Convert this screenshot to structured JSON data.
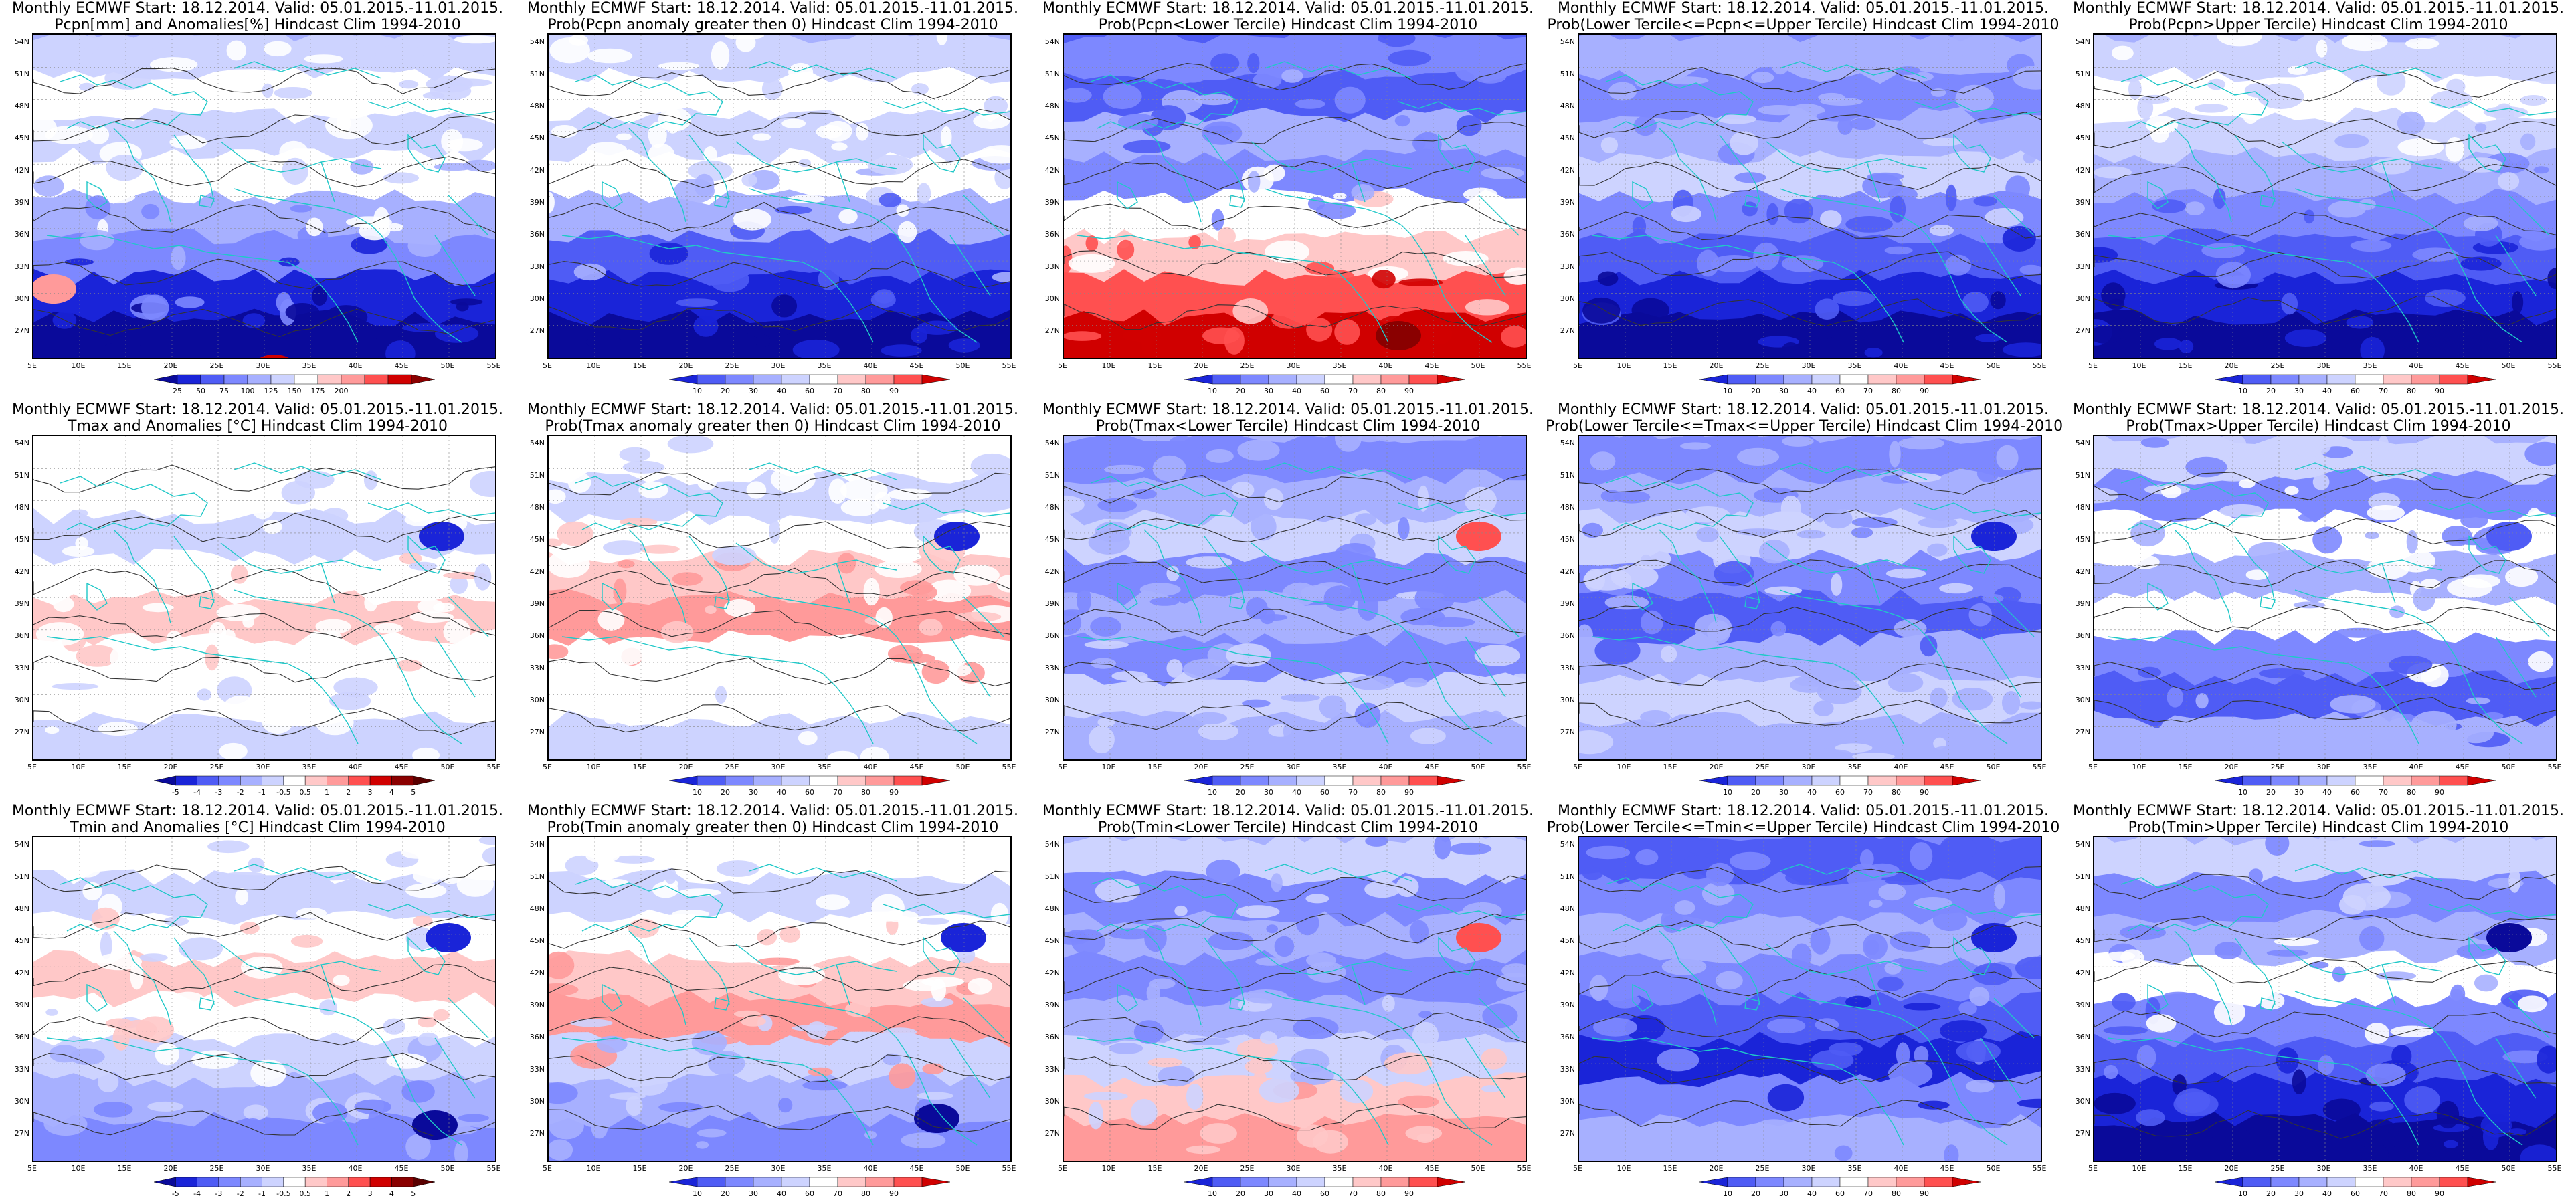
{
  "header_line": "Monthly ECMWF Start: 18.12.2014. Valid: 05.01.2015.-11.01.2015.",
  "lat_labels": [
    "54N",
    "51N",
    "48N",
    "45N",
    "42N",
    "39N",
    "36N",
    "33N",
    "30N",
    "27N"
  ],
  "lon_labels": [
    "5E",
    "10E",
    "15E",
    "20E",
    "25E",
    "30E",
    "35E",
    "40E",
    "45E",
    "50E",
    "55E"
  ],
  "colors": {
    "white": "#ffffff",
    "pale_blue": "#cdd3ff",
    "light_blue": "#a7b0ff",
    "mid_blue": "#7d88ff",
    "blue": "#4f5cf5",
    "dark_blue": "#1a24d8",
    "navy": "#0a0a9a",
    "pale_red": "#ffc8c8",
    "light_red": "#ff9a9a",
    "red": "#ff5050",
    "dark_red": "#d00000",
    "deep_red": "#8a0000",
    "coast": "#20c8c8",
    "contour": "#333333"
  },
  "scales": {
    "pcpn": [
      "25",
      "50",
      "75",
      "100",
      "125",
      "150",
      "175",
      "200"
    ],
    "anom": [
      "-5",
      "-4",
      "-3",
      "-2",
      "-1",
      "-0.5",
      "0.5",
      "1",
      "2",
      "3",
      "4",
      "5"
    ],
    "prob": [
      "10",
      "20",
      "30",
      "40",
      "60",
      "70",
      "80",
      "90"
    ]
  },
  "panels": [
    {
      "id": "r1c1",
      "line2": "Pcpn[mm] and Anomalies[%] Hindcast Clim 1994-2010",
      "scale": "pcpn",
      "pattern": "pcpn-anom"
    },
    {
      "id": "r1c2",
      "line2": "Prob(Pcpn anomaly greater then 0) Hindcast Clim 1994-2010",
      "scale": "prob",
      "pattern": "pcpn-prob"
    },
    {
      "id": "r1c3",
      "line2": "Prob(Pcpn<Lower Tercile) Hindcast Clim 1994-2010",
      "scale": "prob",
      "pattern": "pcpn-lower"
    },
    {
      "id": "r1c4",
      "line2": "Prob(Lower Tercile<=Pcpn<=Upper Tercile) Hindcast Clim 1994-2010",
      "scale": "prob",
      "pattern": "pcpn-mid"
    },
    {
      "id": "r1c5",
      "line2": "Prob(Pcpn>Upper Tercile) Hindcast Clim 1994-2010",
      "scale": "prob",
      "pattern": "pcpn-upper"
    },
    {
      "id": "r2c1",
      "line2": "Tmax and Anomalies [°C] Hindcast Clim 1994-2010",
      "scale": "anom",
      "pattern": "tmax-anom"
    },
    {
      "id": "r2c2",
      "line2": "Prob(Tmax anomaly greater then 0) Hindcast Clim 1994-2010",
      "scale": "prob",
      "pattern": "tmax-prob"
    },
    {
      "id": "r2c3",
      "line2": "Prob(Tmax<Lower Tercile) Hindcast Clim 1994-2010",
      "scale": "prob",
      "pattern": "tmax-lower"
    },
    {
      "id": "r2c4",
      "line2": "Prob(Lower Tercile<=Tmax<=Upper Tercile) Hindcast Clim 1994-2010",
      "scale": "prob",
      "pattern": "tmax-mid"
    },
    {
      "id": "r2c5",
      "line2": "Prob(Tmax>Upper Tercile) Hindcast Clim 1994-2010",
      "scale": "prob",
      "pattern": "tmax-upper"
    },
    {
      "id": "r3c1",
      "line2": "Tmin and Anomalies [°C] Hindcast Clim 1994-2010",
      "scale": "anom",
      "pattern": "tmin-anom"
    },
    {
      "id": "r3c2",
      "line2": "Prob(Tmin anomaly greater then 0) Hindcast Clim 1994-2010",
      "scale": "prob",
      "pattern": "tmin-prob"
    },
    {
      "id": "r3c3",
      "line2": "Prob(Tmin<Lower Tercile) Hindcast Clim 1994-2010",
      "scale": "prob",
      "pattern": "tmin-lower"
    },
    {
      "id": "r3c4",
      "line2": "Prob(Lower Tercile<=Tmin<=Upper Tercile) Hindcast Clim 1994-2010",
      "scale": "prob",
      "pattern": "tmin-mid"
    },
    {
      "id": "r3c5",
      "line2": "Prob(Tmin>Upper Tercile) Hindcast Clim 1994-2010",
      "scale": "prob",
      "pattern": "tmin-upper"
    }
  ]
}
